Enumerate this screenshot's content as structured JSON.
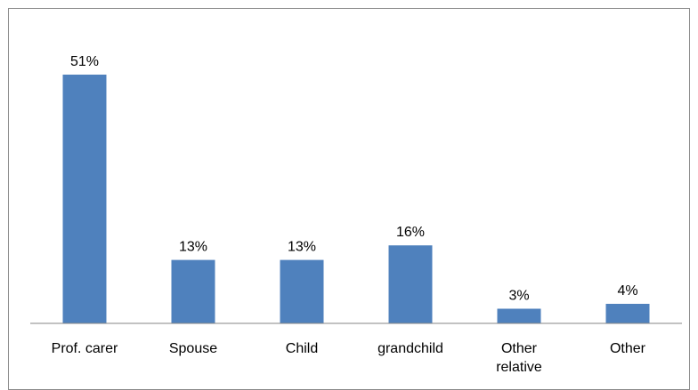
{
  "chart_data": {
    "type": "bar",
    "categories": [
      "Prof. carer",
      "Spouse",
      "Child",
      "grandchild",
      "Other relative",
      "Other"
    ],
    "values": [
      51,
      13,
      13,
      16,
      3,
      4
    ],
    "data_labels": [
      "51%",
      "13%",
      "13%",
      "16%",
      "3%",
      "4%"
    ],
    "title": "",
    "xlabel": "",
    "ylabel": "",
    "ylim": [
      0,
      51
    ],
    "grid": false,
    "legend": "none"
  },
  "colors": {
    "bar": "#4f81bd",
    "axis": "#868686",
    "frame": "#8c8c8c"
  }
}
